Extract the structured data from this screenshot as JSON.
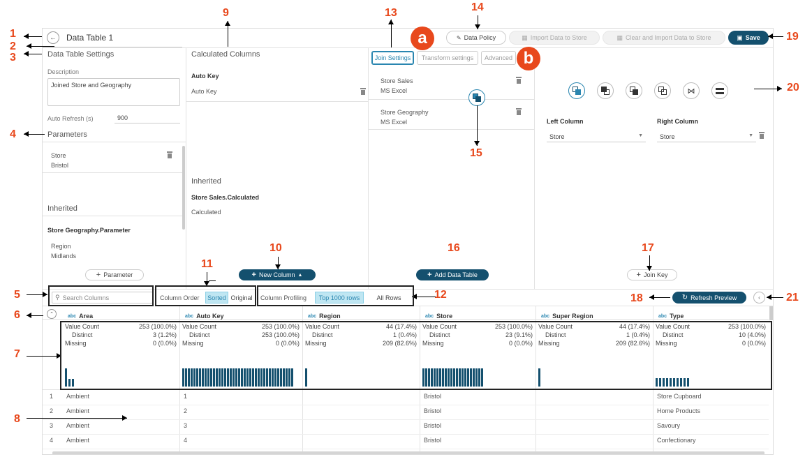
{
  "header": {
    "title": "Data Table 1",
    "data_policy": "Data Policy",
    "import_store": "Import Data to Store",
    "clear_import_store": "Clear and Import Data to Store",
    "save": "Save"
  },
  "settings": {
    "heading": "Data Table Settings",
    "description_label": "Description",
    "description_value": "Joined Store and Geography",
    "auto_refresh_label": "Auto Refresh (s)",
    "auto_refresh_value": "900",
    "parameters_heading": "Parameters",
    "parameter": {
      "name": "Store",
      "value": "Bristol"
    },
    "inherited_heading": "Inherited",
    "inherited_source": "Store Geography.Parameter",
    "inherited_param": {
      "name": "Region",
      "value": "Midlands"
    },
    "add_parameter": "Parameter"
  },
  "calculated": {
    "heading": "Calculated Columns",
    "item_title": "Auto Key",
    "item_value": "Auto Key",
    "inherited_heading": "Inherited",
    "inherited_source": "Store Sales.Calculated",
    "inherited_value": "Calculated",
    "new_column": "New Column"
  },
  "sources": {
    "tabs": [
      "Join Settings",
      "Transform settings",
      "Advanced"
    ],
    "items": [
      {
        "name": "Store Sales",
        "type": "MS Excel"
      },
      {
        "name": "Store Geography",
        "type": "MS Excel"
      }
    ],
    "add_data_table": "Add Data Table"
  },
  "join": {
    "left_label": "Left Column",
    "right_label": "Right Column",
    "left_value": "Store",
    "right_value": "Store",
    "add_join_key": "Join Key"
  },
  "toolbar": {
    "search_placeholder": "Search Columns",
    "column_order_label": "Column Order",
    "sorted": "Sorted",
    "original": "Original",
    "profiling_label": "Column Profiling",
    "top_rows": "Top 1000 rows",
    "all_rows": "All Rows",
    "refresh_preview": "Refresh Preview"
  },
  "profile_labels": {
    "value_count": "Value Count",
    "distinct": "Distinct",
    "missing": "Missing"
  },
  "columns": [
    {
      "type": "abc",
      "name": "Area",
      "value_count": "253 (100.0%)",
      "distinct": "3 (1.2%)",
      "missing": "0 (0.0%)"
    },
    {
      "type": "abc",
      "name": "Auto Key",
      "value_count": "253 (100.0%)",
      "distinct": "253 (100.0%)",
      "missing": "0 (0.0%)"
    },
    {
      "type": "abc",
      "name": "Region",
      "value_count": "44 (17.4%)",
      "distinct": "1 (0.4%)",
      "missing": "209 (82.6%)"
    },
    {
      "type": "abc",
      "name": "Store",
      "value_count": "253 (100.0%)",
      "distinct": "23 (9.1%)",
      "missing": "0 (0.0%)"
    },
    {
      "type": "abc",
      "name": "Super Region",
      "value_count": "44 (17.4%)",
      "distinct": "1 (0.4%)",
      "missing": "209 (82.6%)"
    },
    {
      "type": "abc",
      "name": "Type",
      "value_count": "253 (100.0%)",
      "distinct": "10 (4.0%)",
      "missing": "0 (0.0%)"
    }
  ],
  "rows": [
    {
      "n": "1",
      "area": "Ambient",
      "key": "1",
      "store": "Bristol",
      "type": "Store Cupboard"
    },
    {
      "n": "2",
      "area": "Ambient",
      "key": "2",
      "store": "Bristol",
      "type": "Home Products"
    },
    {
      "n": "3",
      "area": "Ambient",
      "key": "3",
      "store": "Bristol",
      "type": "Savoury"
    },
    {
      "n": "4",
      "area": "Ambient",
      "key": "4",
      "store": "Bristol",
      "type": "Confectionary"
    }
  ],
  "callouts": [
    "1",
    "2",
    "3",
    "4",
    "5",
    "6",
    "7",
    "8",
    "9",
    "10",
    "11",
    "12",
    "13",
    "14",
    "15",
    "16",
    "17",
    "18",
    "19",
    "20",
    "21",
    "a",
    "b"
  ],
  "colors": {
    "accent": "#14506e",
    "callout": "#e8481c",
    "bar": "#14506e"
  }
}
